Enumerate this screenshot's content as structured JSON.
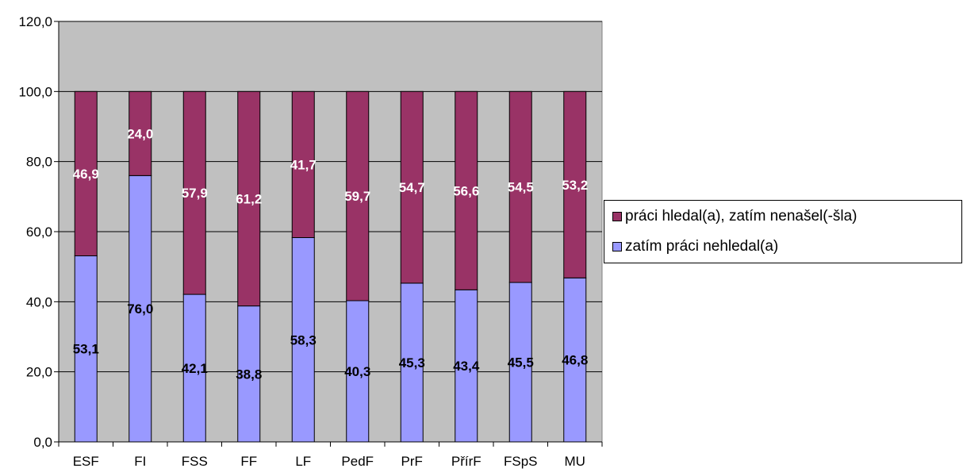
{
  "chart_data": {
    "type": "bar",
    "stacked": true,
    "categories": [
      "ESF",
      "FI",
      "FSS",
      "FF",
      "LF",
      "PedF",
      "PrF",
      "PřírF",
      "FSpS",
      "MU"
    ],
    "series": [
      {
        "name": "zatím práci nehledal(a)",
        "color": "#9999ff",
        "label_color": "#000000",
        "values": [
          53.1,
          76.0,
          42.1,
          38.8,
          58.3,
          40.3,
          45.3,
          43.4,
          45.5,
          46.8
        ],
        "labels": [
          "53,1",
          "76,0",
          "42,1",
          "38,8",
          "58,3",
          "40,3",
          "45,3",
          "43,4",
          "45,5",
          "46,8"
        ]
      },
      {
        "name": "práci hledal(a), zatím nenašel(-šla)",
        "color": "#993366",
        "label_color": "#ffffff",
        "values": [
          46.9,
          24.0,
          57.9,
          61.2,
          41.7,
          59.7,
          54.7,
          56.6,
          54.5,
          53.2
        ],
        "labels": [
          "46,9",
          "24,0",
          "57,9",
          "61,2",
          "41,7",
          "59,7",
          "54,7",
          "56,6",
          "54,5",
          "53,2"
        ]
      }
    ],
    "ylim": [
      0,
      120
    ],
    "yticks": [
      0,
      20,
      40,
      60,
      80,
      100,
      120
    ],
    "ytick_labels": [
      "0,0",
      "20,0",
      "40,0",
      "60,0",
      "80,0",
      "100,0",
      "120,0"
    ],
    "grid": true,
    "plot_background": "#c0c0c0",
    "legend_position": "right",
    "legend": [
      {
        "label": "práci hledal(a), zatím nenašel(-šla)",
        "color": "#993366"
      },
      {
        "label": "zatím práci nehledal(a)",
        "color": "#9999ff"
      }
    ]
  }
}
